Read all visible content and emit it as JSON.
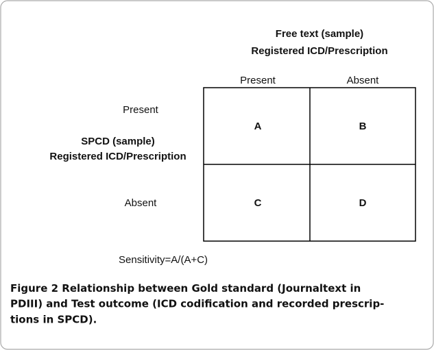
{
  "header": {
    "line1": "Free text (sample)",
    "line2": "Registered ICD/Prescription"
  },
  "columns": [
    "Present",
    "Absent"
  ],
  "rows": [
    "Present",
    "Absent"
  ],
  "row_header": {
    "line1": "SPCD (sample)",
    "line2": "Registered ICD/Prescription"
  },
  "cells": [
    [
      "A",
      "B"
    ],
    [
      "C",
      "D"
    ]
  ],
  "formula": "Sensitivity=A/(A+C)",
  "caption": {
    "label": "Figure 2",
    "lines": [
      "Relationship between Gold standard (Journaltext in",
      "PDIII) and Test outcome (ICD codification and recorded prescrip-",
      "tions in SPCD)."
    ]
  }
}
